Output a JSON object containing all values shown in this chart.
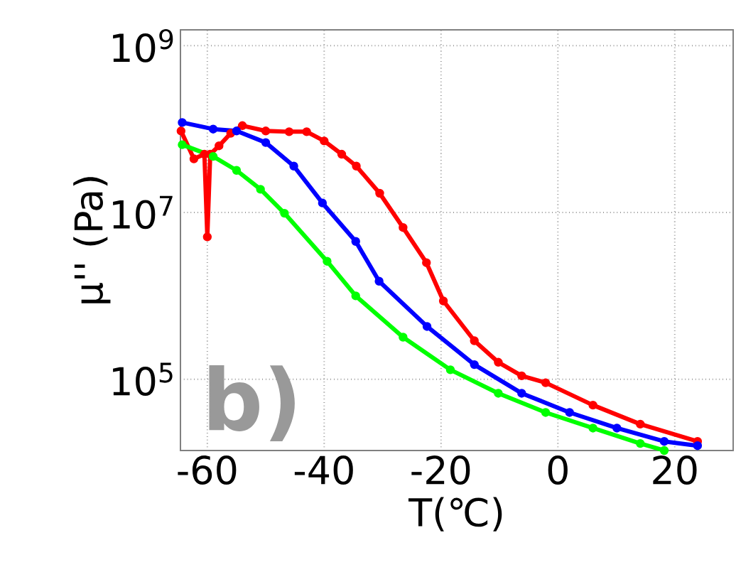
{
  "chart_data": {
    "type": "line",
    "xlabel": "T(℃)",
    "ylabel": "μ'' (Pa)",
    "log": "y",
    "grid": true,
    "marker": "circle",
    "line_style": "solid",
    "xlim": [
      -64.6,
      30
    ],
    "ylim": [
      14000,
      1550000000
    ],
    "xticks": [
      -60,
      -40,
      -20,
      0,
      20
    ],
    "yticks": [
      {
        "value": 100000,
        "label": "10$^{5}$"
      },
      {
        "value": 10000000,
        "label": "10$^{7}$"
      },
      {
        "value": 1000000000,
        "label": "10$^{9}$"
      }
    ],
    "annotations": [
      "b)"
    ],
    "series": [
      {
        "color": "#ff0000",
        "x": [
          -64.5,
          -62.3,
          -60.5,
          -60,
          -59.5,
          -58,
          -56,
          -54,
          -50,
          -46,
          -43,
          -40,
          -37,
          -34.5,
          -30.5,
          -26.5,
          -22.5,
          -19.6,
          -14.3,
          -10.2,
          -6.2,
          -2.1,
          6,
          14.1,
          23.9
        ],
        "values": [
          95000000,
          44000000,
          50000000,
          5100000,
          50000000,
          63000000,
          89000000,
          110000000,
          95000000,
          93000000,
          93000000,
          72000000,
          50000000,
          36000000,
          17000000,
          6600000,
          2500000,
          870000,
          290000,
          160000,
          110000,
          91000,
          49000,
          29000,
          18000
        ]
      },
      {
        "color": "#0000ff",
        "x": [
          -64.3,
          -59,
          -55,
          -50,
          -45.2,
          -40.3,
          -34.6,
          -30.6,
          -22.4,
          -14.3,
          -6.2,
          2,
          10.1,
          18.2,
          23.9
        ],
        "values": [
          120000000,
          100000000,
          95000000,
          69000000,
          36000000,
          13000000,
          4500000,
          1500000,
          430000,
          150000,
          68000,
          40000,
          26000,
          18000,
          16000
        ]
      },
      {
        "color": "#00ff00",
        "x": [
          -64.3,
          -59,
          -55,
          -50.9,
          -46.8,
          -39.5,
          -34.6,
          -26.5,
          -18.4,
          -10.2,
          -2.1,
          6,
          14.1,
          18.2
        ],
        "values": [
          65000000,
          47000000,
          32000000,
          19000000,
          9800000,
          2600000,
          1000000,
          320000,
          130000,
          68000,
          40000,
          26000,
          17000,
          14000
        ]
      }
    ]
  }
}
